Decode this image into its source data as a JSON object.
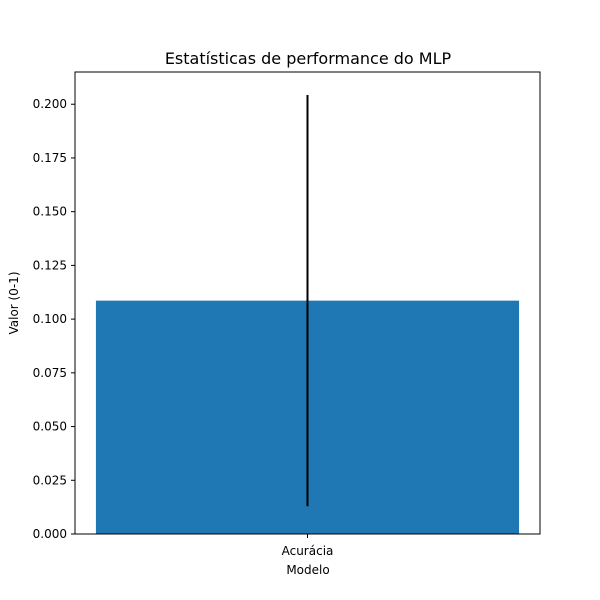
{
  "chart_data": {
    "type": "bar",
    "title": "Estatísticas de performance do MLP",
    "xlabel": "Modelo",
    "ylabel": "Valor (0-1)",
    "categories": [
      "Acurácia"
    ],
    "values": [
      0.1086
    ],
    "error": [
      0.0957
    ],
    "ylim": [
      0,
      0.215
    ],
    "yticks": [
      "0.000",
      "0.025",
      "0.050",
      "0.075",
      "0.100",
      "0.125",
      "0.150",
      "0.175",
      "0.200"
    ],
    "bar_color": "#1f77b4",
    "error_color": "#000000",
    "grid": false,
    "legend": "none"
  }
}
